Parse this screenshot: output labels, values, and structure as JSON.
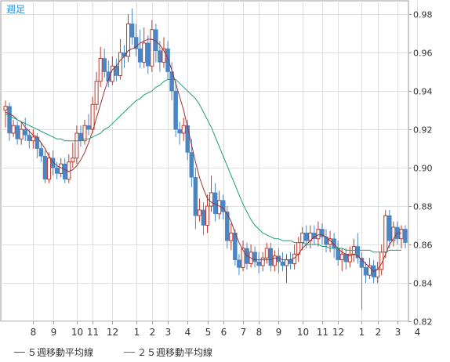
{
  "period_label": "週足",
  "legend": {
    "ma5": "５週移動平均線",
    "ma25": "２５週移動平均線"
  },
  "colors": {
    "up_candle": "#c0392b",
    "down_candle": "#4a86c5",
    "ma5": "#a03030",
    "ma25": "#1a9e7a",
    "grid": "#dfdfdf",
    "axis": "#999999",
    "period_label": "#2a8fd6"
  },
  "chart_data": {
    "type": "candlestick",
    "y_ticks": [
      "0.82",
      "0.84",
      "0.86",
      "0.88",
      "0.90",
      "0.92",
      "0.94",
      "0.96",
      "0.98"
    ],
    "ylim": [
      0.82,
      0.987
    ],
    "x_ticks": [
      {
        "label": "8",
        "index": 7
      },
      {
        "label": "9",
        "index": 12
      },
      {
        "label": "10",
        "index": 18
      },
      {
        "label": "11",
        "index": 22
      },
      {
        "label": "12",
        "index": 27
      },
      {
        "label": "1",
        "index": 33
      },
      {
        "label": "2",
        "index": 37
      },
      {
        "label": "3",
        "index": 41
      },
      {
        "label": "4",
        "index": 46
      },
      {
        "label": "5",
        "index": 51
      },
      {
        "label": "6",
        "index": 55
      },
      {
        "label": "7",
        "index": 60
      },
      {
        "label": "8",
        "index": 64
      },
      {
        "label": "9",
        "index": 69
      },
      {
        "label": "10",
        "index": 75
      },
      {
        "label": "11",
        "index": 80
      },
      {
        "label": "12",
        "index": 84
      },
      {
        "label": "1",
        "index": 90
      },
      {
        "label": "2",
        "index": 94
      },
      {
        "label": "3",
        "index": 99
      },
      {
        "label": "4",
        "index": 104
      }
    ],
    "candles": [
      [
        0.93,
        0.932,
        0.935,
        0.921
      ],
      [
        0.932,
        0.918,
        0.934,
        0.914
      ],
      [
        0.918,
        0.922,
        0.925,
        0.916
      ],
      [
        0.922,
        0.915,
        0.924,
        0.912
      ],
      [
        0.915,
        0.92,
        0.924,
        0.912
      ],
      [
        0.92,
        0.917,
        0.926,
        0.914
      ],
      [
        0.917,
        0.914,
        0.92,
        0.91
      ],
      [
        0.914,
        0.916,
        0.92,
        0.91
      ],
      [
        0.916,
        0.91,
        0.918,
        0.905
      ],
      [
        0.91,
        0.906,
        0.913,
        0.903
      ],
      [
        0.906,
        0.894,
        0.909,
        0.892
      ],
      [
        0.894,
        0.905,
        0.908,
        0.892
      ],
      [
        0.905,
        0.9,
        0.909,
        0.896
      ],
      [
        0.9,
        0.897,
        0.903,
        0.894
      ],
      [
        0.897,
        0.902,
        0.905,
        0.895
      ],
      [
        0.902,
        0.894,
        0.905,
        0.892
      ],
      [
        0.894,
        0.903,
        0.907,
        0.892
      ],
      [
        0.903,
        0.905,
        0.913,
        0.9
      ],
      [
        0.905,
        0.918,
        0.922,
        0.902
      ],
      [
        0.918,
        0.914,
        0.922,
        0.911
      ],
      [
        0.914,
        0.922,
        0.925,
        0.912
      ],
      [
        0.922,
        0.92,
        0.928,
        0.917
      ],
      [
        0.92,
        0.933,
        0.937,
        0.918
      ],
      [
        0.933,
        0.945,
        0.95,
        0.93
      ],
      [
        0.945,
        0.957,
        0.963,
        0.942
      ],
      [
        0.957,
        0.95,
        0.962,
        0.947
      ],
      [
        0.95,
        0.945,
        0.956,
        0.942
      ],
      [
        0.945,
        0.953,
        0.958,
        0.943
      ],
      [
        0.953,
        0.948,
        0.957,
        0.945
      ],
      [
        0.948,
        0.96,
        0.967,
        0.946
      ],
      [
        0.96,
        0.958,
        0.964,
        0.952
      ],
      [
        0.958,
        0.975,
        0.98,
        0.955
      ],
      [
        0.975,
        0.968,
        0.983,
        0.964
      ],
      [
        0.968,
        0.962,
        0.975,
        0.958
      ],
      [
        0.962,
        0.955,
        0.972,
        0.952
      ],
      [
        0.955,
        0.965,
        0.973,
        0.952
      ],
      [
        0.965,
        0.953,
        0.969,
        0.949
      ],
      [
        0.953,
        0.972,
        0.977,
        0.95
      ],
      [
        0.972,
        0.961,
        0.975,
        0.955
      ],
      [
        0.961,
        0.955,
        0.966,
        0.95
      ],
      [
        0.955,
        0.962,
        0.968,
        0.952
      ],
      [
        0.962,
        0.95,
        0.966,
        0.946
      ],
      [
        0.95,
        0.94,
        0.955,
        0.935
      ],
      [
        0.94,
        0.92,
        0.945,
        0.916
      ],
      [
        0.92,
        0.918,
        0.924,
        0.912
      ],
      [
        0.918,
        0.922,
        0.926,
        0.914
      ],
      [
        0.922,
        0.908,
        0.925,
        0.904
      ],
      [
        0.908,
        0.895,
        0.915,
        0.89
      ],
      [
        0.895,
        0.875,
        0.9,
        0.868
      ],
      [
        0.875,
        0.878,
        0.884,
        0.872
      ],
      [
        0.878,
        0.87,
        0.882,
        0.865
      ],
      [
        0.87,
        0.88,
        0.886,
        0.866
      ],
      [
        0.88,
        0.887,
        0.896,
        0.877
      ],
      [
        0.887,
        0.876,
        0.892,
        0.872
      ],
      [
        0.876,
        0.883,
        0.888,
        0.873
      ],
      [
        0.883,
        0.877,
        0.886,
        0.873
      ],
      [
        0.877,
        0.862,
        0.88,
        0.858
      ],
      [
        0.862,
        0.866,
        0.871,
        0.857
      ],
      [
        0.866,
        0.852,
        0.868,
        0.849
      ],
      [
        0.852,
        0.848,
        0.855,
        0.844
      ],
      [
        0.848,
        0.858,
        0.862,
        0.846
      ],
      [
        0.858,
        0.85,
        0.861,
        0.847
      ],
      [
        0.85,
        0.856,
        0.86,
        0.848
      ],
      [
        0.856,
        0.851,
        0.859,
        0.848
      ],
      [
        0.851,
        0.849,
        0.856,
        0.845
      ],
      [
        0.849,
        0.853,
        0.856,
        0.846
      ],
      [
        0.853,
        0.858,
        0.861,
        0.85
      ],
      [
        0.858,
        0.849,
        0.861,
        0.846
      ],
      [
        0.849,
        0.854,
        0.857,
        0.846
      ],
      [
        0.854,
        0.851,
        0.858,
        0.845
      ],
      [
        0.851,
        0.849,
        0.856,
        0.846
      ],
      [
        0.849,
        0.852,
        0.855,
        0.84
      ],
      [
        0.852,
        0.85,
        0.856,
        0.847
      ],
      [
        0.85,
        0.855,
        0.86,
        0.847
      ],
      [
        0.855,
        0.861,
        0.864,
        0.851
      ],
      [
        0.861,
        0.866,
        0.869,
        0.857
      ],
      [
        0.866,
        0.862,
        0.87,
        0.858
      ],
      [
        0.862,
        0.866,
        0.87,
        0.858
      ],
      [
        0.866,
        0.863,
        0.87,
        0.86
      ],
      [
        0.863,
        0.868,
        0.872,
        0.859
      ],
      [
        0.868,
        0.864,
        0.871,
        0.86
      ],
      [
        0.864,
        0.86,
        0.868,
        0.856
      ],
      [
        0.86,
        0.863,
        0.867,
        0.856
      ],
      [
        0.863,
        0.858,
        0.866,
        0.853
      ],
      [
        0.858,
        0.852,
        0.862,
        0.849
      ],
      [
        0.852,
        0.855,
        0.858,
        0.846
      ],
      [
        0.855,
        0.851,
        0.858,
        0.847
      ],
      [
        0.851,
        0.855,
        0.859,
        0.848
      ],
      [
        0.855,
        0.859,
        0.863,
        0.851
      ],
      [
        0.859,
        0.853,
        0.866,
        0.85
      ],
      [
        0.853,
        0.848,
        0.856,
        0.826
      ],
      [
        0.848,
        0.844,
        0.851,
        0.84
      ],
      [
        0.844,
        0.849,
        0.853,
        0.842
      ],
      [
        0.849,
        0.843,
        0.852,
        0.84
      ],
      [
        0.843,
        0.847,
        0.851,
        0.84
      ],
      [
        0.847,
        0.856,
        0.86,
        0.844
      ],
      [
        0.856,
        0.875,
        0.878,
        0.853
      ],
      [
        0.875,
        0.862,
        0.878,
        0.858
      ],
      [
        0.862,
        0.869,
        0.872,
        0.859
      ],
      [
        0.869,
        0.863,
        0.872,
        0.86
      ],
      [
        0.863,
        0.868,
        0.87,
        0.858
      ],
      [
        0.868,
        0.861,
        0.87,
        0.858
      ]
    ],
    "series": [
      {
        "name": "５週移動平均線",
        "values": [
          0.929,
          0.928,
          0.927,
          0.925,
          0.924,
          0.921,
          0.919,
          0.917,
          0.916,
          0.913,
          0.91,
          0.906,
          0.903,
          0.901,
          0.9,
          0.899,
          0.898,
          0.899,
          0.901,
          0.904,
          0.908,
          0.913,
          0.919,
          0.926,
          0.933,
          0.94,
          0.946,
          0.951,
          0.953,
          0.956,
          0.958,
          0.961,
          0.962,
          0.963,
          0.965,
          0.966,
          0.967,
          0.967,
          0.966,
          0.964,
          0.961,
          0.957,
          0.951,
          0.944,
          0.937,
          0.93,
          0.921,
          0.912,
          0.903,
          0.895,
          0.889,
          0.884,
          0.882,
          0.881,
          0.88,
          0.879,
          0.876,
          0.872,
          0.866,
          0.861,
          0.857,
          0.854,
          0.853,
          0.852,
          0.852,
          0.852,
          0.852,
          0.852,
          0.853,
          0.853,
          0.852,
          0.852,
          0.852,
          0.853,
          0.855,
          0.858,
          0.86,
          0.862,
          0.864,
          0.865,
          0.865,
          0.864,
          0.862,
          0.86,
          0.858,
          0.856,
          0.855,
          0.854,
          0.855,
          0.854,
          0.852,
          0.85,
          0.848,
          0.846,
          0.847,
          0.85,
          0.855,
          0.86,
          0.863,
          0.866,
          0.866
        ]
      },
      {
        "name": "２５週移動平均線",
        "values": [
          0.928,
          0.927,
          0.926,
          0.925,
          0.924,
          0.923,
          0.922,
          0.921,
          0.92,
          0.919,
          0.918,
          0.917,
          0.916,
          0.915,
          0.915,
          0.914,
          0.914,
          0.914,
          0.914,
          0.914,
          0.915,
          0.915,
          0.916,
          0.917,
          0.918,
          0.92,
          0.921,
          0.923,
          0.925,
          0.927,
          0.929,
          0.931,
          0.933,
          0.935,
          0.936,
          0.938,
          0.939,
          0.94,
          0.942,
          0.943,
          0.945,
          0.946,
          0.946,
          0.946,
          0.944,
          0.942,
          0.94,
          0.938,
          0.936,
          0.933,
          0.929,
          0.925,
          0.921,
          0.916,
          0.911,
          0.906,
          0.901,
          0.896,
          0.891,
          0.886,
          0.881,
          0.877,
          0.873,
          0.87,
          0.868,
          0.866,
          0.865,
          0.864,
          0.863,
          0.863,
          0.862,
          0.862,
          0.862,
          0.861,
          0.861,
          0.861,
          0.86,
          0.86,
          0.86,
          0.86,
          0.859,
          0.859,
          0.858,
          0.858,
          0.858,
          0.858,
          0.857,
          0.857,
          0.857,
          0.857,
          0.857,
          0.857,
          0.857,
          0.856,
          0.856,
          0.856,
          0.856,
          0.857,
          0.857,
          0.857,
          0.857
        ]
      }
    ]
  }
}
